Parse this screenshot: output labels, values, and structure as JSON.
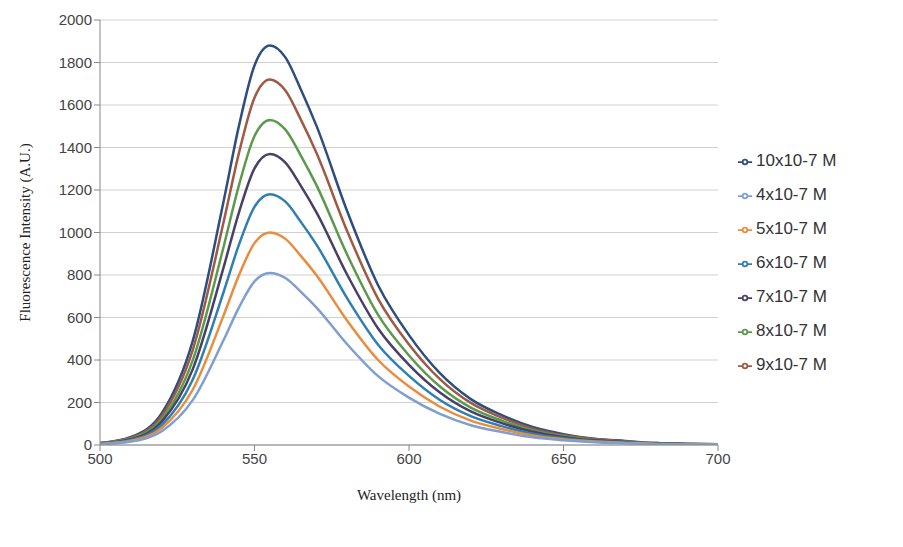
{
  "chart_data": {
    "type": "line",
    "x_label": "Wavelength (nm)",
    "y_label": "Fluorescence Intensity (A.U.)",
    "x": [
      500,
      510,
      520,
      530,
      540,
      545,
      550,
      555,
      560,
      565,
      570,
      580,
      590,
      600,
      610,
      620,
      630,
      640,
      650,
      660,
      670,
      680,
      690,
      700
    ],
    "xlim": [
      500,
      700
    ],
    "xticks": [
      500,
      550,
      600,
      650,
      700
    ],
    "ylim": [
      0,
      2000
    ],
    "yticks": [
      0,
      200,
      400,
      600,
      800,
      1000,
      1200,
      1400,
      1600,
      1800,
      2000
    ],
    "grid": true,
    "legend": "right",
    "series": [
      {
        "name": "10x10-7 M",
        "color": "#2e4e7e",
        "values": [
          9,
          38,
          150,
          489,
          1147,
          1504,
          1786,
          1880,
          1824,
          1673,
          1504,
          1100,
          752,
          517,
          338,
          216,
          141,
          85,
          51,
          30,
          19,
          9,
          6,
          4
        ]
      },
      {
        "name": "9x10-7 M",
        "color": "#9e5a44",
        "values": [
          9,
          34,
          138,
          447,
          1049,
          1376,
          1634,
          1720,
          1668,
          1531,
          1376,
          1006,
          688,
          473,
          310,
          198,
          129,
          77,
          46,
          28,
          17,
          9,
          5,
          3
        ]
      },
      {
        "name": "8x10-7 M",
        "color": "#5a9a4e",
        "values": [
          8,
          31,
          122,
          398,
          933,
          1224,
          1454,
          1530,
          1484,
          1362,
          1224,
          895,
          612,
          421,
          275,
          176,
          115,
          69,
          41,
          24,
          15,
          8,
          5,
          3
        ]
      },
      {
        "name": "7x10-7 M",
        "color": "#4a3f66",
        "values": [
          7,
          27,
          110,
          356,
          836,
          1096,
          1302,
          1370,
          1329,
          1219,
          1096,
          801,
          548,
          377,
          247,
          158,
          103,
          62,
          37,
          22,
          14,
          7,
          4,
          3
        ]
      },
      {
        "name": "6x10-7 M",
        "color": "#2f7fb0",
        "values": [
          6,
          24,
          94,
          307,
          720,
          944,
          1121,
          1180,
          1145,
          1050,
          944,
          690,
          472,
          325,
          212,
          136,
          89,
          53,
          32,
          19,
          12,
          6,
          4,
          2
        ]
      },
      {
        "name": "5x10-7 M",
        "color": "#e98c3f",
        "values": [
          5,
          20,
          80,
          260,
          610,
          800,
          950,
          1000,
          970,
          890,
          800,
          585,
          400,
          275,
          180,
          115,
          75,
          45,
          27,
          16,
          10,
          5,
          3,
          2
        ]
      },
      {
        "name": "4x10-7 M",
        "color": "#7f9fd0",
        "values": [
          4,
          16,
          65,
          211,
          494,
          648,
          770,
          810,
          786,
          721,
          648,
          474,
          324,
          223,
          146,
          93,
          61,
          36,
          22,
          13,
          8,
          4,
          2,
          2
        ]
      }
    ]
  }
}
